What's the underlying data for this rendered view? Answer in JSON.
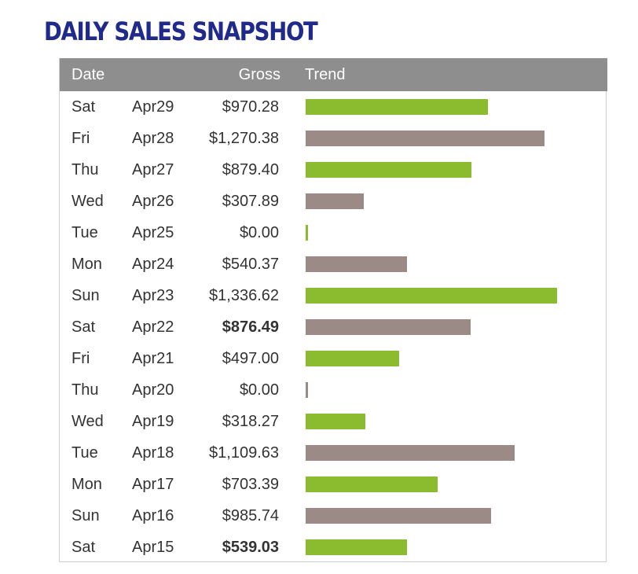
{
  "title": "DAILY SALES SNAPSHOT",
  "colors": {
    "title": "#1f2a8a",
    "header_bg": "#8e8e8e",
    "bar_green": "#8bbc2f",
    "bar_gray": "#9b8a85"
  },
  "chart_data": {
    "type": "table",
    "columns": [
      "Date",
      "Gross",
      "Trend"
    ],
    "rows": [
      {
        "day": "Sat",
        "date": "Apr29",
        "gross": "$970.28",
        "value": 970.28,
        "color": "green",
        "bold": false
      },
      {
        "day": "Fri",
        "date": "Apr28",
        "gross": "$1,270.38",
        "value": 1270.38,
        "color": "gray",
        "bold": false
      },
      {
        "day": "Thu",
        "date": "Apr27",
        "gross": "$879.40",
        "value": 879.4,
        "color": "green",
        "bold": false
      },
      {
        "day": "Wed",
        "date": "Apr26",
        "gross": "$307.89",
        "value": 307.89,
        "color": "gray",
        "bold": false
      },
      {
        "day": "Tue",
        "date": "Apr25",
        "gross": "$0.00",
        "value": 0,
        "color": "green",
        "bold": false
      },
      {
        "day": "Mon",
        "date": "Apr24",
        "gross": "$540.37",
        "value": 540.37,
        "color": "gray",
        "bold": false
      },
      {
        "day": "Sun",
        "date": "Apr23",
        "gross": "$1,336.62",
        "value": 1336.62,
        "color": "green",
        "bold": false
      },
      {
        "day": "Sat",
        "date": "Apr22",
        "gross": "$876.49",
        "value": 876.49,
        "color": "gray",
        "bold": true
      },
      {
        "day": "Fri",
        "date": "Apr21",
        "gross": "$497.00",
        "value": 497.0,
        "color": "green",
        "bold": false
      },
      {
        "day": "Thu",
        "date": "Apr20",
        "gross": "$0.00",
        "value": 0,
        "color": "gray",
        "bold": false
      },
      {
        "day": "Wed",
        "date": "Apr19",
        "gross": "$318.27",
        "value": 318.27,
        "color": "green",
        "bold": false
      },
      {
        "day": "Tue",
        "date": "Apr18",
        "gross": "$1,109.63",
        "value": 1109.63,
        "color": "gray",
        "bold": false
      },
      {
        "day": "Mon",
        "date": "Apr17",
        "gross": "$703.39",
        "value": 703.39,
        "color": "green",
        "bold": false
      },
      {
        "day": "Sun",
        "date": "Apr16",
        "gross": "$985.74",
        "value": 985.74,
        "color": "gray",
        "bold": false
      },
      {
        "day": "Sat",
        "date": "Apr15",
        "gross": "$539.03",
        "value": 539.03,
        "color": "green",
        "bold": true
      }
    ]
  }
}
